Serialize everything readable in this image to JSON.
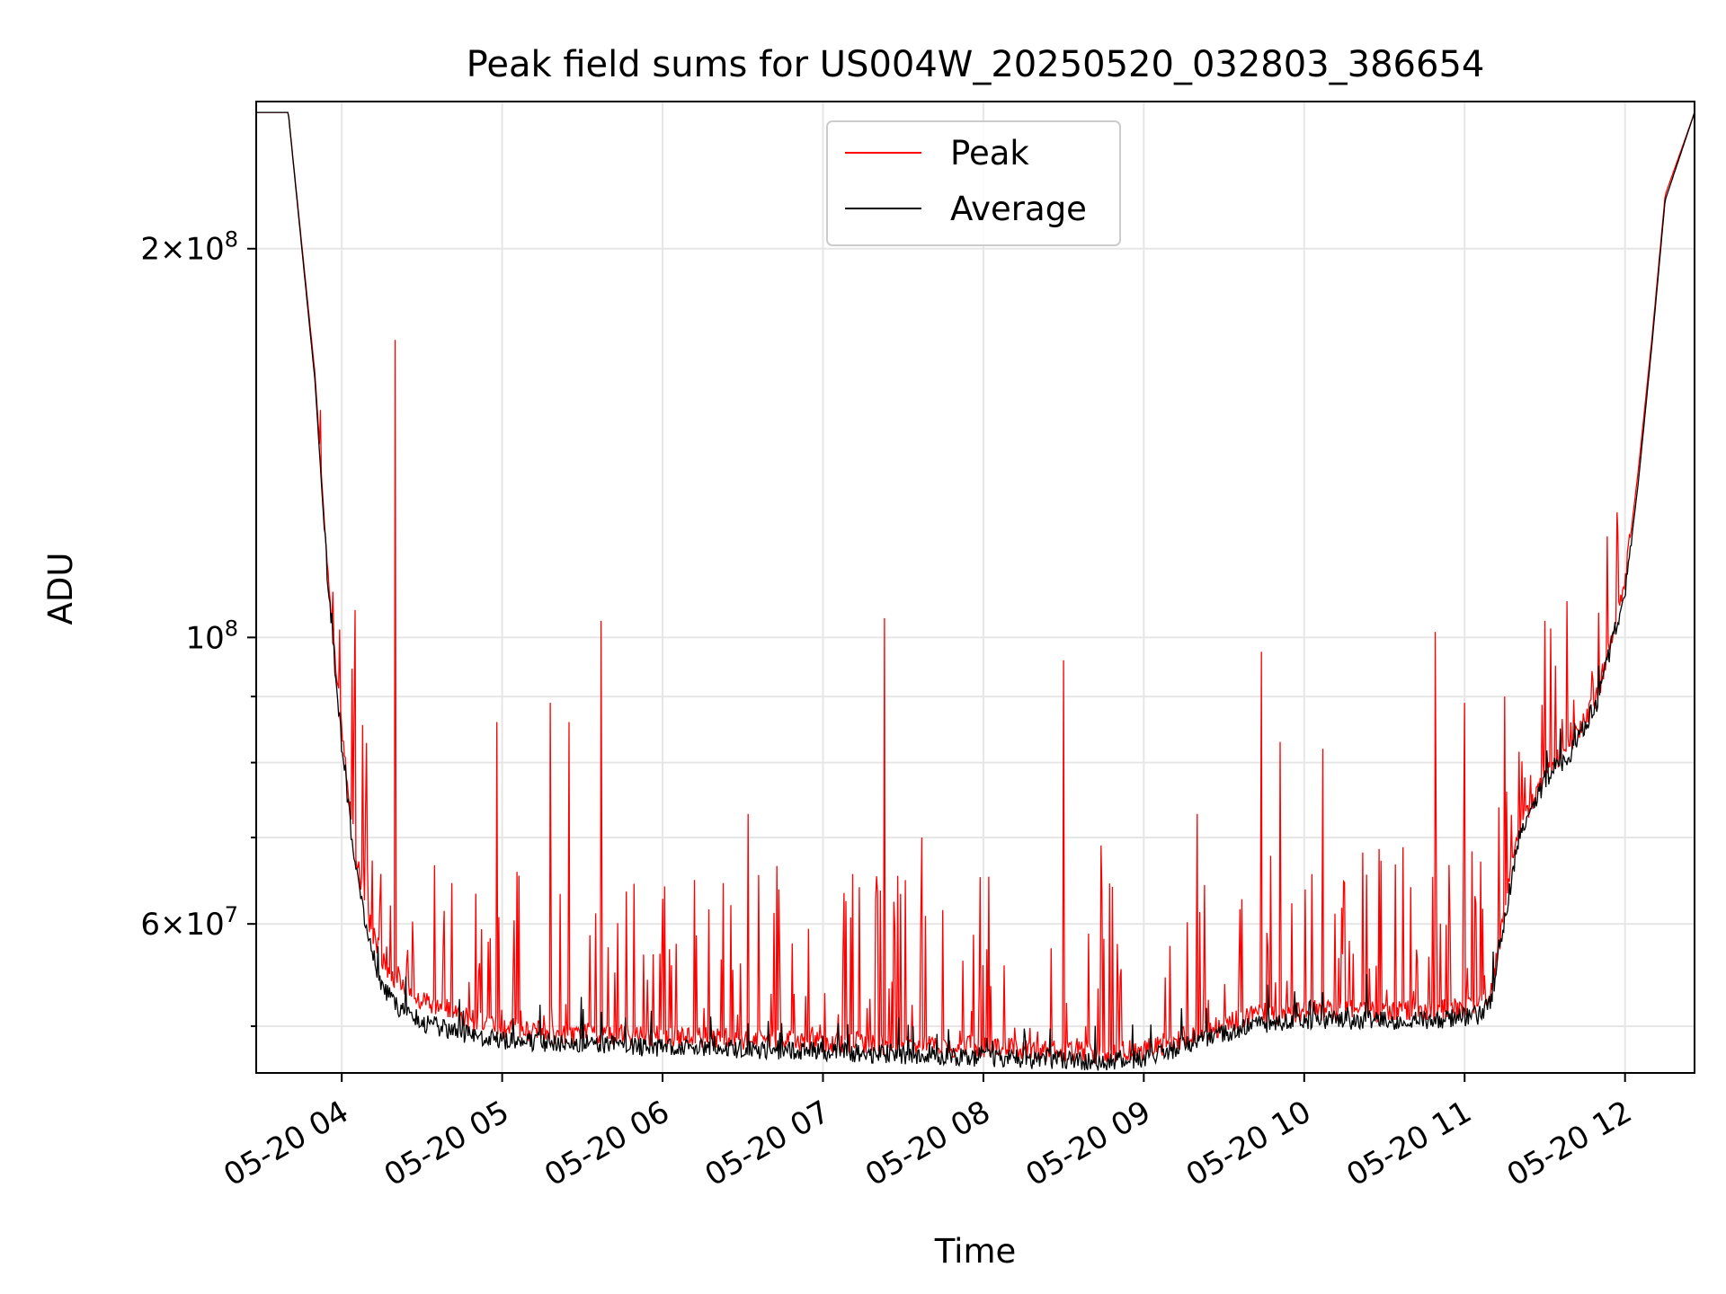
{
  "chart_data": {
    "type": "line",
    "title": "Peak field sums for US004W_20250520_032803_386654",
    "xlabel": "Time",
    "ylabel": "ADU",
    "x_scale": "time",
    "y_scale": "log",
    "xlim": [
      "2025-05-20 03:28",
      "2025-05-20 12:26"
    ],
    "ylim": [
      46000000,
      260000000
    ],
    "x_ticks": [
      {
        "value": "2025-05-20 04:00",
        "label": "05-20 04"
      },
      {
        "value": "2025-05-20 05:00",
        "label": "05-20 05"
      },
      {
        "value": "2025-05-20 06:00",
        "label": "05-20 06"
      },
      {
        "value": "2025-05-20 07:00",
        "label": "05-20 07"
      },
      {
        "value": "2025-05-20 08:00",
        "label": "05-20 08"
      },
      {
        "value": "2025-05-20 09:00",
        "label": "05-20 09"
      },
      {
        "value": "2025-05-20 10:00",
        "label": "05-20 10"
      },
      {
        "value": "2025-05-20 11:00",
        "label": "05-20 11"
      },
      {
        "value": "2025-05-20 12:00",
        "label": "05-20 12"
      }
    ],
    "y_major_ticks": [
      {
        "value": 60000000,
        "mantissa": "6",
        "base": "10",
        "exp": "7"
      },
      {
        "value": 100000000,
        "mantissa": "",
        "base": "10",
        "exp": "8"
      },
      {
        "value": 200000000,
        "mantissa": "2",
        "base": "10",
        "exp": "8"
      }
    ],
    "y_minor_ticks": [
      50000000,
      70000000,
      80000000,
      90000000
    ],
    "grid": true,
    "legend": {
      "position": "top-center"
    },
    "colors": {
      "Peak": "#ff0000",
      "Average": "#000000"
    },
    "series": [
      {
        "name": "Peak",
        "color": "#ff0000",
        "x": [
          "2025-05-20 03:28",
          "2025-05-20 03:40",
          "2025-05-20 03:50",
          "2025-05-20 03:55",
          "2025-05-20 04:00",
          "2025-05-20 04:05",
          "2025-05-20 04:10",
          "2025-05-20 04:15",
          "2025-05-20 04:20",
          "2025-05-20 04:30",
          "2025-05-20 04:40",
          "2025-05-20 04:50",
          "2025-05-20 05:00",
          "2025-05-20 05:20",
          "2025-05-20 05:40",
          "2025-05-20 06:00",
          "2025-05-20 06:30",
          "2025-05-20 07:00",
          "2025-05-20 07:30",
          "2025-05-20 08:00",
          "2025-05-20 08:20",
          "2025-05-20 08:40",
          "2025-05-20 09:00",
          "2025-05-20 09:20",
          "2025-05-20 09:40",
          "2025-05-20 10:00",
          "2025-05-20 10:30",
          "2025-05-20 10:50",
          "2025-05-20 11:05",
          "2025-05-20 11:10",
          "2025-05-20 11:15",
          "2025-05-20 11:20",
          "2025-05-20 11:30",
          "2025-05-20 11:40",
          "2025-05-20 11:50",
          "2025-05-20 12:00",
          "2025-05-20 12:05",
          "2025-05-20 12:10",
          "2025-05-20 12:15",
          "2025-05-20 12:26"
        ],
        "y": [
          255000000,
          255000000,
          160000000,
          110000000,
          84000000,
          68000000,
          60000000,
          56000000,
          54000000,
          52000000,
          51000000,
          50000000,
          49500000,
          49000000,
          48900000,
          48800000,
          48500000,
          48300000,
          48000000,
          47800000,
          47500000,
          47300000,
          47500000,
          49000000,
          50500000,
          51000000,
          51000000,
          51000000,
          51500000,
          53000000,
          61000000,
          70000000,
          78000000,
          82000000,
          90000000,
          110000000,
          135000000,
          170000000,
          220000000,
          255000000
        ],
        "spikes": [
          {
            "x": "2025-05-20 03:52",
            "y": 150000000
          },
          {
            "x": "2025-05-20 04:05",
            "y": 105000000
          },
          {
            "x": "2025-05-20 04:20",
            "y": 170000000
          },
          {
            "x": "2025-05-20 04:58",
            "y": 86000000
          },
          {
            "x": "2025-05-20 05:18",
            "y": 89000000
          },
          {
            "x": "2025-05-20 05:25",
            "y": 86000000
          },
          {
            "x": "2025-05-20 05:37",
            "y": 103000000
          },
          {
            "x": "2025-05-20 06:32",
            "y": 73000000
          },
          {
            "x": "2025-05-20 07:23",
            "y": 103500000
          },
          {
            "x": "2025-05-20 07:37",
            "y": 70000000
          },
          {
            "x": "2025-05-20 08:30",
            "y": 96000000
          },
          {
            "x": "2025-05-20 08:44",
            "y": 69000000
          },
          {
            "x": "2025-05-20 09:20",
            "y": 73000000
          },
          {
            "x": "2025-05-20 09:44",
            "y": 97500000
          },
          {
            "x": "2025-05-20 09:51",
            "y": 83000000
          },
          {
            "x": "2025-05-20 10:07",
            "y": 82000000
          },
          {
            "x": "2025-05-20 10:49",
            "y": 101000000
          },
          {
            "x": "2025-05-20 11:00",
            "y": 89000000
          },
          {
            "x": "2025-05-20 11:15",
            "y": 90000000
          },
          {
            "x": "2025-05-20 11:30",
            "y": 103000000
          },
          {
            "x": "2025-05-20 11:57",
            "y": 125000000
          }
        ]
      },
      {
        "name": "Average",
        "color": "#000000",
        "x": [
          "2025-05-20 03:28",
          "2025-05-20 03:40",
          "2025-05-20 03:50",
          "2025-05-20 03:55",
          "2025-05-20 04:00",
          "2025-05-20 04:05",
          "2025-05-20 04:10",
          "2025-05-20 04:15",
          "2025-05-20 04:20",
          "2025-05-20 04:30",
          "2025-05-20 04:40",
          "2025-05-20 04:50",
          "2025-05-20 05:00",
          "2025-05-20 05:20",
          "2025-05-20 05:40",
          "2025-05-20 06:00",
          "2025-05-20 06:30",
          "2025-05-20 07:00",
          "2025-05-20 07:30",
          "2025-05-20 08:00",
          "2025-05-20 08:20",
          "2025-05-20 08:40",
          "2025-05-20 09:00",
          "2025-05-20 09:20",
          "2025-05-20 09:40",
          "2025-05-20 10:00",
          "2025-05-20 10:30",
          "2025-05-20 10:50",
          "2025-05-20 11:05",
          "2025-05-20 11:10",
          "2025-05-20 11:15",
          "2025-05-20 11:20",
          "2025-05-20 11:30",
          "2025-05-20 11:40",
          "2025-05-20 11:50",
          "2025-05-20 12:00",
          "2025-05-20 12:05",
          "2025-05-20 12:10",
          "2025-05-20 12:15",
          "2025-05-20 12:26"
        ],
        "y": [
          255000000,
          255000000,
          158000000,
          108000000,
          82000000,
          66000000,
          58000000,
          53500000,
          51500000,
          50000000,
          49300000,
          48800000,
          48500000,
          48200000,
          48000000,
          47800000,
          47700000,
          47500000,
          47200000,
          47000000,
          46800000,
          46600000,
          46900000,
          48300000,
          49800000,
          50200000,
          50200000,
          50200000,
          50600000,
          52000000,
          60000000,
          69000000,
          77000000,
          81000000,
          89000000,
          108000000,
          132000000,
          168000000,
          218000000,
          255000000
        ]
      }
    ]
  }
}
